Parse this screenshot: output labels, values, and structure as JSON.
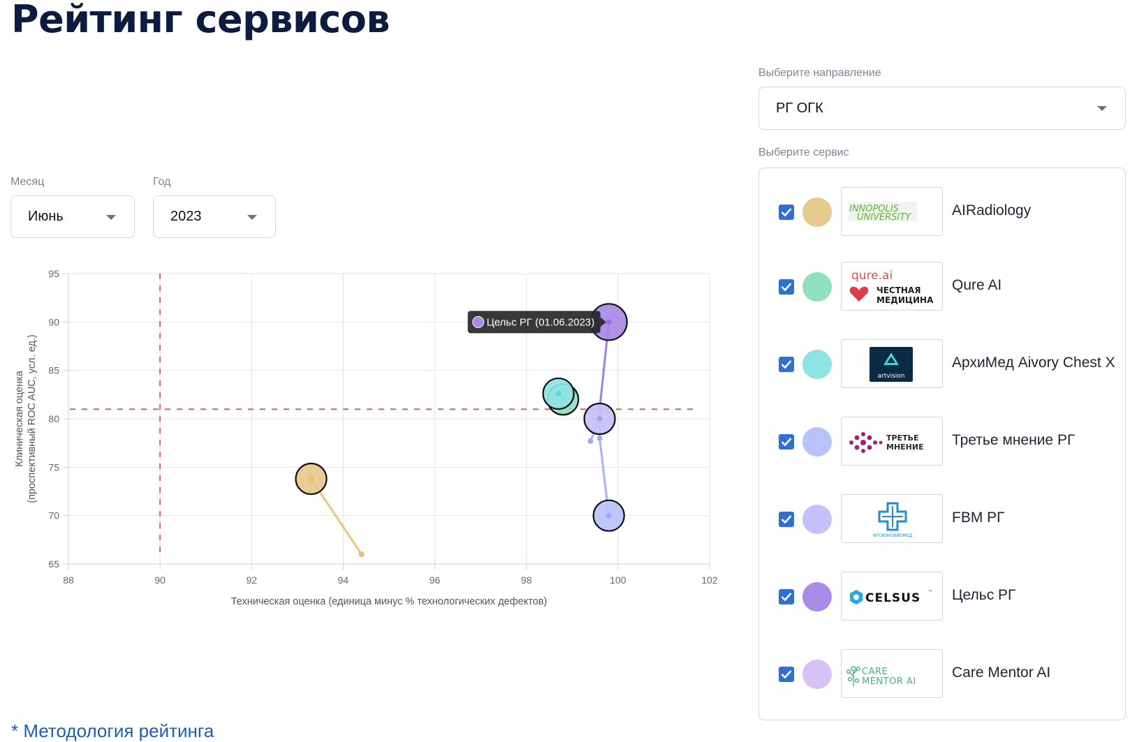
{
  "page": {
    "title": "Рейтинг сервисов"
  },
  "filters": {
    "direction": {
      "label": "Выберите направление",
      "value": "РГ ОГК"
    },
    "service_label": "Выберите сервис",
    "month": {
      "label": "Месяц",
      "value": "Июнь"
    },
    "year": {
      "label": "Год",
      "value": "2023"
    }
  },
  "services": [
    {
      "name": "AIRadiology",
      "color": "#e6c98c",
      "checked": true,
      "logo": "innopolis-university-logo",
      "logo_text": [
        "INNOPOLIS",
        "UNIVERSITY"
      ]
    },
    {
      "name": "Qure AI",
      "color": "#8fe0bc",
      "checked": true,
      "logo": "qure-ai-logo",
      "logo_text": [
        "qure.ai",
        "ЧЕСТНАЯ",
        "МЕДИЦИНА"
      ]
    },
    {
      "name": "АрхиМед Aivory Chest X",
      "color": "#8fe3e3",
      "checked": true,
      "logo": "artvision-logo",
      "logo_text": [
        "artvision"
      ]
    },
    {
      "name": "Третье мнение РГ",
      "color": "#b8c2fb",
      "checked": true,
      "logo": "third-opinion-logo",
      "logo_text": [
        "ТРЕТЬЕ",
        "МНЕНИЕ"
      ]
    },
    {
      "name": "FBM РГ",
      "color": "#c6c0fa",
      "checked": true,
      "logo": "fbm-logo",
      "logo_text": [
        "ФТОЮНОВИОМЕД"
      ]
    },
    {
      "name": "Цельс РГ",
      "color": "#a98ae6",
      "checked": true,
      "logo": "celsus-logo",
      "logo_text": [
        "CELSUS",
        "™"
      ]
    },
    {
      "name": "Care Mentor AI",
      "color": "#d7c2f7",
      "checked": true,
      "logo": "care-mentor-logo",
      "logo_text": [
        "CARE",
        "MENTOR AI"
      ]
    }
  ],
  "chart_data": {
    "type": "scatter",
    "xlabel": "Техническая оценка (единица минус % технологических дефектов)",
    "ylabel": [
      "Клиническая оценка",
      "(проспективный ROC AUC, усл. ед.)"
    ],
    "xlim": [
      88,
      102
    ],
    "ylim": [
      65,
      95
    ],
    "xticks": [
      88,
      90,
      92,
      94,
      96,
      98,
      100,
      102
    ],
    "yticks": [
      65,
      70,
      75,
      80,
      85,
      90,
      95
    ],
    "grid": true,
    "reference_lines": {
      "x": 90,
      "y": 81,
      "color": "#e53935",
      "style": "dashed"
    },
    "series": [
      {
        "name": "AIRadiology",
        "color": "#e6c98c",
        "line_color": "#e8bf73",
        "points": [
          {
            "x": 94.4,
            "y": 66
          },
          {
            "x": 93.3,
            "y": 73.8
          }
        ],
        "current": {
          "x": 93.3,
          "y": 73.8
        }
      },
      {
        "name": "Qure AI",
        "color": "#8fe0bc",
        "line_color": "#6fd3a3",
        "points": [
          {
            "x": 98.8,
            "y": 82
          }
        ],
        "current": {
          "x": 98.8,
          "y": 82
        }
      },
      {
        "name": "АрхиМед Aivory Chest X",
        "color": "#8fe3e3",
        "line_color": "#67d4d4",
        "points": [
          {
            "x": 98.7,
            "y": 82.6
          }
        ],
        "current": {
          "x": 98.7,
          "y": 82.6
        }
      },
      {
        "name": "Третье мнение РГ",
        "color": "#b8c2fb",
        "line_color": "#9fa9f5",
        "points": [
          {
            "x": 99.8,
            "y": 70
          },
          {
            "x": 99.6,
            "y": 78
          },
          {
            "x": 99.6,
            "y": 81
          }
        ],
        "current": {
          "x": 99.8,
          "y": 70
        }
      },
      {
        "name": "FBM РГ",
        "color": "#c6c0fa",
        "line_color": "#aaa2f5",
        "points": [
          {
            "x": 99.4,
            "y": 77.7
          },
          {
            "x": 99.6,
            "y": 80
          }
        ],
        "current": {
          "x": 99.6,
          "y": 80
        }
      },
      {
        "name": "Цельс РГ",
        "color": "#a98ae6",
        "line_color": "#9271e0",
        "points": [
          {
            "x": 99.6,
            "y": 81
          },
          {
            "x": 99.8,
            "y": 90
          }
        ],
        "current": {
          "x": 99.8,
          "y": 90
        }
      }
    ],
    "tooltip": {
      "text": "Цельс РГ (01.06.2023)",
      "swatch_color": "#a98ae6",
      "series": "Цельс РГ"
    }
  },
  "footer": {
    "methodology_link": "* Методология рейтинга"
  }
}
